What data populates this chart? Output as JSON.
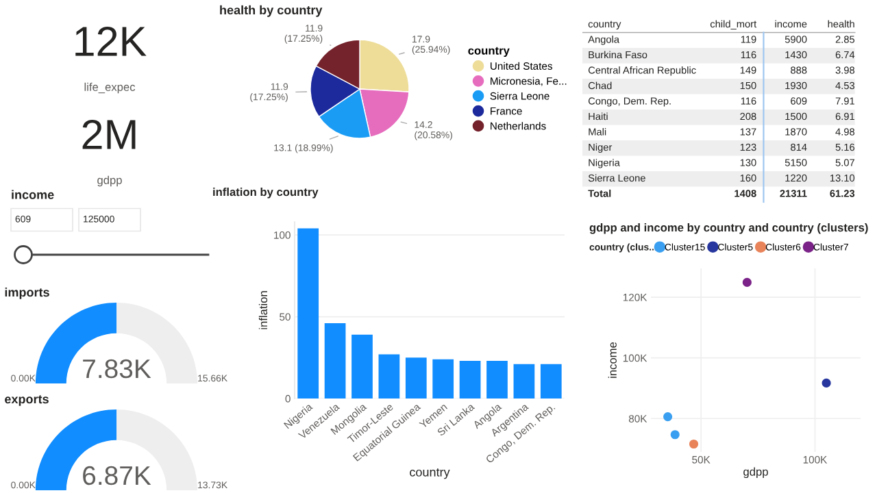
{
  "chart_data": [
    {
      "type": "other",
      "annotations": [
        "12K",
        "life_expec"
      ]
    },
    {
      "type": "other",
      "annotations": [
        "2M",
        "gdpp"
      ]
    },
    {
      "type": "other",
      "title": "income",
      "annotations": [
        "609",
        "125000"
      ]
    },
    {
      "type": "pie",
      "title": "health by country",
      "categories": [
        "United States",
        "Micronesia, Fe...",
        "Sierra Leone",
        "France",
        "Netherlands"
      ],
      "values": [
        17.9,
        14.2,
        13.1,
        11.9,
        11.9
      ],
      "colors": [
        "#eedd99",
        "#e66cbe",
        "#1a9cf5",
        "#1c2a9c",
        "#74222b"
      ],
      "value_labels": [
        "17.9\n(25.94%)",
        "14.2\n(20.58%)",
        "13.1 (18.99%)",
        "11.9\n(17.25%)",
        "11.9\n(17.25%)"
      ],
      "legend": "right",
      "legend_title": "country"
    },
    {
      "type": "other",
      "categories": [
        "country",
        "child_mort",
        "income",
        "health"
      ],
      "y_categories": [
        "Angola",
        "Burkina Faso",
        "Central African Republic",
        "Chad",
        "Congo, Dem. Rep.",
        "Haiti",
        "Mali",
        "Niger",
        "Nigeria",
        "Sierra Leone",
        "Total"
      ],
      "cell_labels": [
        [
          "119",
          "5900",
          "2.85"
        ],
        [
          "116",
          "1430",
          "6.74"
        ],
        [
          "149",
          "888",
          "3.98"
        ],
        [
          "150",
          "1930",
          "4.53"
        ],
        [
          "116",
          "609",
          "7.91"
        ],
        [
          "208",
          "1500",
          "6.91"
        ],
        [
          "137",
          "1870",
          "4.98"
        ],
        [
          "123",
          "814",
          "5.16"
        ],
        [
          "130",
          "5150",
          "5.07"
        ],
        [
          "160",
          "1220",
          "13.10"
        ],
        [
          "1408",
          "21311",
          "61.23"
        ]
      ]
    },
    {
      "type": "bar",
      "title": "inflation by country",
      "xlabel": "country",
      "ylabel": "inflation",
      "categories": [
        "Nigeria",
        "Venezuela",
        "Mongolia",
        "Timor-Leste",
        "Equatorial Guinea",
        "Yemen",
        "Sri Lanka",
        "Angola",
        "Argentina",
        "Congo, Dem. Rep."
      ],
      "values": [
        104,
        46,
        39,
        27,
        25,
        24,
        23,
        23,
        21,
        21
      ],
      "color": "#118dff",
      "ylim": [
        0,
        108
      ],
      "yticks": [
        0,
        50,
        100
      ],
      "grid": "y"
    },
    {
      "type": "scatter",
      "title": "gdpp and income by country and country (clusters)",
      "xlabel": "gdpp",
      "ylabel": "income",
      "legend": "top",
      "legend_title": "country (clus...",
      "marker": "circle",
      "grid": true,
      "xlim": [
        28000,
        120000
      ],
      "xticks": [
        {
          "value": 50000,
          "label": "50K"
        },
        {
          "value": 100000,
          "label": "100K"
        }
      ],
      "ylim": [
        69000,
        129500
      ],
      "yticks": [
        {
          "value": 80000,
          "label": "80K"
        },
        {
          "value": 100000,
          "label": "100K"
        },
        {
          "value": 120000,
          "label": "120K"
        }
      ],
      "series": [
        {
          "name": "Cluster15",
          "color": "#3a9ff0",
          "x": [
            35400,
            38600
          ],
          "values": [
            80600,
            74700
          ]
        },
        {
          "name": "Cluster5",
          "color": "#27379e",
          "x": [
            105000
          ],
          "values": [
            91700
          ]
        },
        {
          "name": "Cluster6",
          "color": "#e8835a",
          "x": [
            46800
          ],
          "values": [
            71600
          ]
        },
        {
          "name": "Cluster7",
          "color": "#7b2388",
          "x": [
            70200
          ],
          "values": [
            124900
          ]
        }
      ]
    },
    {
      "type": "donut",
      "title": "imports",
      "categories": [
        null,
        null
      ],
      "values": [
        50,
        50
      ],
      "colors": [
        "#118dff",
        "#eeeeee"
      ],
      "annotations": [
        "0.00K",
        "7.83K",
        "15.66K"
      ]
    },
    {
      "type": "donut",
      "title": "exports",
      "categories": [
        null,
        null
      ],
      "values": [
        50,
        50
      ],
      "colors": [
        "#118dff",
        "#eeeeee"
      ],
      "annotations": [
        "0.00K",
        "6.87K",
        "13.73K"
      ]
    }
  ]
}
